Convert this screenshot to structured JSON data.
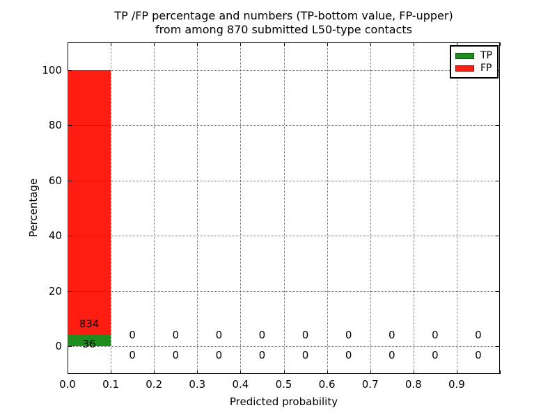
{
  "chart_data": {
    "type": "bar",
    "stacked": true,
    "title_lines": [
      "TP /FP percentage and numbers (TP-bottom value, FP-upper)",
      "from among 870 submitted L50-type contacts"
    ],
    "xlabel": "Predicted probability",
    "ylabel": "Percentage",
    "total_contacts": 870,
    "bin_edges": [
      0.0,
      0.1,
      0.2,
      0.3,
      0.4,
      0.5,
      0.6,
      0.7,
      0.8,
      0.9,
      1.0
    ],
    "series": [
      {
        "name": "TP",
        "color": "#1e8c1e",
        "counts": [
          36,
          0,
          0,
          0,
          0,
          0,
          0,
          0,
          0,
          0
        ]
      },
      {
        "name": "FP",
        "color": "#ff1d12",
        "counts": [
          834,
          0,
          0,
          0,
          0,
          0,
          0,
          0,
          0,
          0
        ]
      }
    ],
    "xtick_labels": [
      "0.0",
      "0.1",
      "0.2",
      "0.3",
      "0.4",
      "0.5",
      "0.6",
      "0.7",
      "0.8",
      "0.9"
    ],
    "ytick_values": [
      0,
      20,
      40,
      60,
      80,
      100
    ],
    "xlim": [
      0.0,
      1.0
    ],
    "ylim": [
      -10,
      110
    ],
    "grid": "dotted",
    "axes_color": "#000000",
    "background_color": "#ffffff",
    "legend": {
      "position": "upper right",
      "entries": [
        {
          "label": "TP",
          "color": "#1e8c1e"
        },
        {
          "label": "FP",
          "color": "#ff1d12"
        }
      ]
    }
  }
}
